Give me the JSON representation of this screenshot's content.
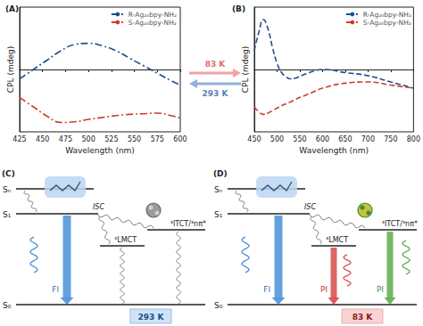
{
  "chart_data": [
    {
      "type": "line",
      "title": "(A)",
      "x_label": "Wavelength (nm)",
      "y_label": "CPL (mdeg)",
      "x": [
        425,
        440,
        455,
        470,
        485,
        500,
        515,
        530,
        545,
        560,
        575,
        590,
        600
      ],
      "xlim": [
        425,
        600
      ],
      "xticks": [
        425,
        450,
        475,
        500,
        525,
        550,
        575,
        600
      ],
      "ylim": [
        -1,
        1
      ],
      "tick_labels": "x",
      "legend": "upper right",
      "series": [
        {
          "name": "R-Ag₂₀bpy-NH₂",
          "color": "#1f4e8c",
          "line_style": "dashdot",
          "values": [
            -0.15,
            0.0,
            0.15,
            0.3,
            0.4,
            0.42,
            0.38,
            0.3,
            0.18,
            0.06,
            -0.06,
            -0.18,
            -0.25
          ]
        },
        {
          "name": "S-Ag₂₀bpy-NH₂",
          "color": "#d03a2f",
          "line_style": "dashdot",
          "values": [
            -0.45,
            -0.6,
            -0.75,
            -0.85,
            -0.84,
            -0.8,
            -0.77,
            -0.74,
            -0.72,
            -0.71,
            -0.7,
            -0.74,
            -0.78
          ]
        }
      ]
    },
    {
      "type": "line",
      "title": "(B)",
      "x_label": "Wavelength (nm)",
      "y_label": "CPL (mdeg)",
      "x": [
        450,
        460,
        470,
        480,
        490,
        500,
        510,
        520,
        530,
        540,
        560,
        580,
        600,
        650,
        700,
        750,
        800
      ],
      "xlim": [
        450,
        800
      ],
      "xticks": [
        450,
        500,
        550,
        600,
        650,
        700,
        750,
        800
      ],
      "ylim": [
        -1,
        1
      ],
      "tick_labels": "x",
      "legend": "upper right",
      "series": [
        {
          "name": "R-Ag₂₀bpy-NH₂",
          "color": "#1f4e8c",
          "line_style": "dashed",
          "values": [
            0.3,
            0.6,
            0.8,
            0.65,
            0.35,
            0.1,
            -0.05,
            -0.12,
            -0.15,
            -0.14,
            -0.08,
            -0.03,
            0.0,
            -0.05,
            -0.1,
            -0.2,
            -0.3
          ]
        },
        {
          "name": "S-Ag₂₀bpy-NH₂",
          "color": "#d03a2f",
          "line_style": "dashed",
          "values": [
            -0.6,
            -0.68,
            -0.72,
            -0.7,
            -0.66,
            -0.62,
            -0.58,
            -0.55,
            -0.52,
            -0.48,
            -0.42,
            -0.36,
            -0.3,
            -0.22,
            -0.2,
            -0.25,
            -0.3
          ]
        }
      ]
    }
  ],
  "switch": {
    "forward": "83 K",
    "back": "293 K"
  },
  "diagrams": [
    {
      "panel": "(C)",
      "levels": [
        "Sₙ",
        "S₁",
        "S₀"
      ],
      "isc": "ISC",
      "states": [
        "³LMCT",
        "³ITCT/³nπ*"
      ],
      "emissions": [
        "Fl"
      ],
      "temperature": "293 K"
    },
    {
      "panel": "(D)",
      "levels": [
        "Sₙ",
        "S₁",
        "S₀"
      ],
      "isc": "ISC",
      "states": [
        "³LMCT",
        "³ITCT/³nπ*"
      ],
      "emissions": [
        "Fl",
        "Pl",
        "Pl"
      ],
      "temperature": "83 K"
    }
  ]
}
